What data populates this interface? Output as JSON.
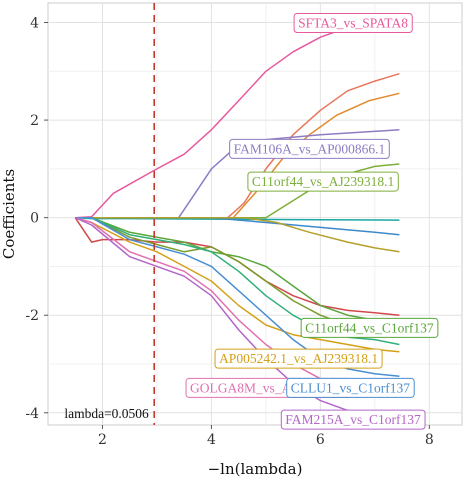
{
  "chart_data": {
    "type": "line",
    "xlabel": "−ln(lambda)",
    "ylabel": "Coefficients",
    "xlim": [
      1.0,
      8.6
    ],
    "ylim": [
      -4.25,
      4.4
    ],
    "x_ticks": [
      2,
      4,
      6,
      8
    ],
    "y_ticks": [
      -4,
      -2,
      0,
      2,
      4
    ],
    "grid": true,
    "vline": {
      "x": 2.95,
      "color": "#c0392b",
      "style": "dashed"
    },
    "annotation": "lambda=0.0506",
    "series": [
      {
        "name": "SFTA3_vs_SPATA8",
        "color": "#e8589c",
        "points": [
          [
            1.5,
            0
          ],
          [
            1.8,
            0.02
          ],
          [
            2.2,
            0.5
          ],
          [
            3.0,
            1.0
          ],
          [
            3.5,
            1.3
          ],
          [
            4.0,
            1.8
          ],
          [
            4.5,
            2.4
          ],
          [
            5.0,
            3.0
          ],
          [
            5.5,
            3.4
          ],
          [
            6.0,
            3.7
          ],
          [
            6.5,
            3.9
          ],
          [
            7.0,
            4.0
          ],
          [
            7.45,
            4.05
          ]
        ]
      },
      {
        "name": "",
        "color": "#e8755a",
        "points": [
          [
            1.5,
            0
          ],
          [
            4.3,
            0
          ],
          [
            4.6,
            0.3
          ],
          [
            5.0,
            1.0
          ],
          [
            5.5,
            1.7
          ],
          [
            6.0,
            2.2
          ],
          [
            6.5,
            2.6
          ],
          [
            7.0,
            2.8
          ],
          [
            7.45,
            2.95
          ]
        ]
      },
      {
        "name": "",
        "color": "#e28a2b",
        "points": [
          [
            1.5,
            0
          ],
          [
            4.4,
            0
          ],
          [
            4.8,
            0.5
          ],
          [
            5.3,
            1.2
          ],
          [
            5.8,
            1.7
          ],
          [
            6.3,
            2.1
          ],
          [
            6.9,
            2.4
          ],
          [
            7.45,
            2.55
          ]
        ]
      },
      {
        "name": "FAM106A_vs_AP000866.1",
        "color": "#8e7cc3",
        "points": [
          [
            1.5,
            0
          ],
          [
            3.4,
            0
          ],
          [
            3.7,
            0.5
          ],
          [
            4.0,
            1.0
          ],
          [
            4.4,
            1.4
          ],
          [
            5.0,
            1.6
          ],
          [
            6.0,
            1.7
          ],
          [
            7.45,
            1.8
          ]
        ]
      },
      {
        "name": "C11orf44_vs_AJ239318.1",
        "color": "#7cae3a",
        "points": [
          [
            1.5,
            0
          ],
          [
            5.0,
            0
          ],
          [
            5.5,
            0.35
          ],
          [
            6.0,
            0.7
          ],
          [
            6.5,
            0.9
          ],
          [
            7.0,
            1.05
          ],
          [
            7.45,
            1.1
          ]
        ]
      },
      {
        "name": "",
        "color": "#1aa6a6",
        "points": [
          [
            1.5,
            0
          ],
          [
            1.8,
            -0.02
          ],
          [
            2.5,
            -0.02
          ],
          [
            4.0,
            -0.03
          ],
          [
            5.5,
            -0.04
          ],
          [
            7.45,
            -0.05
          ]
        ]
      },
      {
        "name": "",
        "color": "#3d89c9",
        "points": [
          [
            1.5,
            0
          ],
          [
            4.0,
            0
          ],
          [
            5.0,
            -0.1
          ],
          [
            6.0,
            -0.2
          ],
          [
            7.0,
            -0.3
          ],
          [
            7.45,
            -0.35
          ]
        ]
      },
      {
        "name": "",
        "color": "#b5a02a",
        "points": [
          [
            1.5,
            0
          ],
          [
            4.6,
            0
          ],
          [
            5.2,
            -0.1
          ],
          [
            5.8,
            -0.3
          ],
          [
            6.5,
            -0.5
          ],
          [
            7.0,
            -0.62
          ],
          [
            7.45,
            -0.7
          ]
        ]
      },
      {
        "name": "",
        "color": "#d0494a",
        "points": [
          [
            1.5,
            0
          ],
          [
            1.8,
            -0.5
          ],
          [
            2.0,
            -0.45
          ],
          [
            2.5,
            -0.45
          ],
          [
            3.0,
            -0.5
          ],
          [
            3.5,
            -0.5
          ],
          [
            4.0,
            -0.6
          ],
          [
            4.5,
            -0.9
          ],
          [
            5.0,
            -1.3
          ],
          [
            5.5,
            -1.6
          ],
          [
            6.0,
            -1.8
          ],
          [
            6.5,
            -1.9
          ],
          [
            7.0,
            -1.95
          ],
          [
            7.45,
            -2.0
          ]
        ]
      },
      {
        "name": "C11orf44_vs_C1orf137",
        "color": "#5aa63b",
        "points": [
          [
            1.5,
            0
          ],
          [
            1.8,
            0
          ],
          [
            2.5,
            -0.3
          ],
          [
            3.0,
            -0.4
          ],
          [
            3.5,
            -0.5
          ],
          [
            4.0,
            -0.7
          ],
          [
            4.5,
            -0.8
          ],
          [
            5.0,
            -1.0
          ],
          [
            5.5,
            -1.4
          ],
          [
            6.0,
            -1.8
          ],
          [
            6.5,
            -2.0
          ],
          [
            7.0,
            -2.1
          ],
          [
            7.45,
            -2.15
          ]
        ]
      },
      {
        "name": "",
        "color": "#7a9c2a",
        "points": [
          [
            1.5,
            0
          ],
          [
            1.8,
            0
          ],
          [
            2.5,
            -0.4
          ],
          [
            3.0,
            -0.55
          ],
          [
            3.5,
            -0.7
          ],
          [
            4.0,
            -0.6
          ],
          [
            4.5,
            -0.9
          ],
          [
            5.0,
            -1.3
          ],
          [
            5.5,
            -1.7
          ],
          [
            6.0,
            -2.0
          ],
          [
            6.5,
            -2.2
          ],
          [
            7.0,
            -2.3
          ],
          [
            7.45,
            -2.3
          ]
        ]
      },
      {
        "name": "AP005242.1_vs_AJ239318.1",
        "color": "#d4a017",
        "points": [
          [
            1.5,
            0
          ],
          [
            1.8,
            -0.1
          ],
          [
            2.5,
            -0.5
          ],
          [
            3.0,
            -0.7
          ],
          [
            3.5,
            -1.0
          ],
          [
            4.0,
            -1.3
          ],
          [
            4.5,
            -1.8
          ],
          [
            5.0,
            -2.2
          ],
          [
            5.5,
            -2.4
          ],
          [
            6.0,
            -2.5
          ],
          [
            6.5,
            -2.6
          ],
          [
            7.0,
            -2.7
          ],
          [
            7.45,
            -2.75
          ]
        ]
      },
      {
        "name": "",
        "color": "#2fb07a",
        "points": [
          [
            1.5,
            0
          ],
          [
            1.8,
            0
          ],
          [
            2.5,
            -0.35
          ],
          [
            3.0,
            -0.45
          ],
          [
            3.5,
            -0.55
          ],
          [
            4.0,
            -0.7
          ],
          [
            4.5,
            -1.1
          ],
          [
            5.0,
            -1.6
          ],
          [
            5.5,
            -2.0
          ],
          [
            6.0,
            -2.3
          ],
          [
            6.5,
            -2.45
          ],
          [
            7.0,
            -2.5
          ],
          [
            7.45,
            -2.6
          ]
        ]
      },
      {
        "name": "CLLU1_vs_C1orf137",
        "color": "#4a8fd1",
        "points": [
          [
            1.5,
            0
          ],
          [
            1.8,
            0
          ],
          [
            2.5,
            -0.45
          ],
          [
            3.0,
            -0.6
          ],
          [
            3.5,
            -0.75
          ],
          [
            4.0,
            -1.0
          ],
          [
            4.5,
            -1.5
          ],
          [
            5.0,
            -2.0
          ],
          [
            5.5,
            -2.5
          ],
          [
            6.0,
            -2.9
          ],
          [
            6.5,
            -3.1
          ],
          [
            7.0,
            -3.2
          ],
          [
            7.45,
            -3.25
          ]
        ]
      },
      {
        "name": "GOLGA8M_vs_AJ239318.1",
        "color": "#e070b0",
        "points": [
          [
            1.5,
            0
          ],
          [
            1.8,
            -0.1
          ],
          [
            2.5,
            -0.7
          ],
          [
            3.0,
            -0.9
          ],
          [
            3.5,
            -1.1
          ],
          [
            4.0,
            -1.5
          ],
          [
            4.5,
            -2.1
          ],
          [
            5.0,
            -2.6
          ],
          [
            5.5,
            -3.0
          ],
          [
            6.0,
            -3.3
          ],
          [
            6.5,
            -3.5
          ],
          [
            7.0,
            -3.6
          ],
          [
            7.45,
            -3.6
          ]
        ]
      },
      {
        "name": "FAM215A_vs_C1orf137",
        "color": "#b366c9",
        "points": [
          [
            1.5,
            0
          ],
          [
            1.8,
            -0.15
          ],
          [
            2.5,
            -0.8
          ],
          [
            3.0,
            -1.0
          ],
          [
            3.5,
            -1.2
          ],
          [
            4.0,
            -1.6
          ],
          [
            4.5,
            -2.3
          ],
          [
            5.0,
            -2.9
          ],
          [
            5.5,
            -3.4
          ],
          [
            6.0,
            -3.75
          ],
          [
            6.5,
            -3.95
          ],
          [
            7.0,
            -4.05
          ],
          [
            7.45,
            -4.1
          ]
        ]
      }
    ],
    "labels": [
      {
        "text": "SFTA3_vs_SPATA8",
        "color": "#e8589c",
        "x": 6.6,
        "y": 4.0
      },
      {
        "text": "FAM106A_vs_AP000866.1",
        "color": "#8e7cc3",
        "x": 5.8,
        "y": 1.42
      },
      {
        "text": "C11orf44_vs_AJ239318.1",
        "color": "#7cae3a",
        "x": 6.05,
        "y": 0.75
      },
      {
        "text": "C11orf44_vs_C1orf137",
        "color": "#5aa63b",
        "x": 6.9,
        "y": -2.25
      },
      {
        "text": "AP005242.1_vs_AJ239318.1",
        "color": "#d4a017",
        "x": 5.6,
        "y": -2.88
      },
      {
        "text": "GOLGA8M_vs_AJ239318.1",
        "color": "#e070b0",
        "x": 5.05,
        "y": -3.48
      },
      {
        "text": "CLLU1_vs_C1orf137",
        "color": "#4a8fd1",
        "x": 6.55,
        "y": -3.48
      },
      {
        "text": "FAM215A_vs_C1orf137",
        "color": "#b366c9",
        "x": 6.6,
        "y": -4.13
      }
    ]
  }
}
